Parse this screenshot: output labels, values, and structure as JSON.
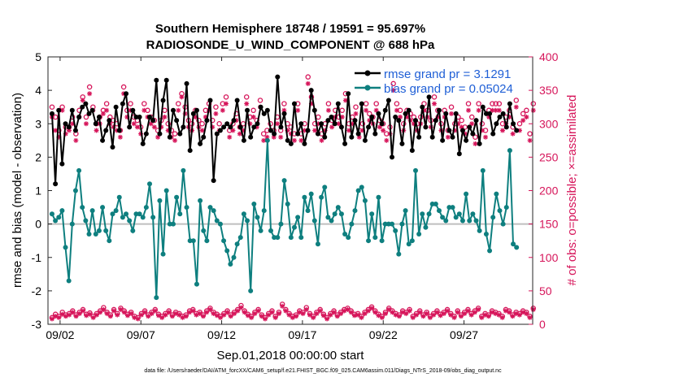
{
  "chart_data": {
    "type": "line",
    "title_line1": "Southern Hemisphere 18748 / 19591 = 95.697%",
    "title_line2": "RADIOSONDE_U_WIND_COMPONENT @ 688 hPa",
    "xlabel": "Sep.01,2018 00:00:00 start",
    "ylabel_left": "rmse and bias (model - observation)",
    "ylabel_right": "# of obs: o=possible; ×=assimilated",
    "footer": "data file: /Users/raeder/DAI/ATM_forcXX/CAM6_setup/f.e21.FHIST_BGC.f09_025.CAM6assim.011/Diags_NTrS_2018-09/obs_diag_output.nc",
    "xlim": [
      0.5,
      60.5
    ],
    "ylim_left": [
      -3,
      5
    ],
    "ylim_right": [
      0,
      400
    ],
    "x_ticks": [
      2,
      12,
      22,
      32,
      42,
      52
    ],
    "x_tick_labels": [
      "09/02",
      "09/07",
      "09/12",
      "09/17",
      "09/22",
      "09/27"
    ],
    "y_ticks_left": [
      -3,
      -2,
      -1,
      0,
      1,
      2,
      3,
      4,
      5
    ],
    "y_ticks_right": [
      0,
      50,
      100,
      150,
      200,
      250,
      300,
      350,
      400
    ],
    "legend": [
      "rmse grand pr = 3.1291",
      "bias grand pr = 0.05024"
    ],
    "colors": {
      "rmse": "#000000",
      "bias": "#0e7f7f",
      "obs": "#d6155a",
      "zero": "#bfbfbf"
    },
    "series": [
      {
        "name": "rmse",
        "values": [
          3.3,
          1.2,
          3.4,
          1.8,
          3.0,
          2.9,
          3.4,
          2.8,
          3.2,
          3.5,
          3.6,
          3.3,
          3.4,
          3.0,
          3.2,
          2.5,
          2.8,
          3.1,
          2.3,
          3.5,
          2.8,
          3.6,
          3.9,
          2.9,
          3.4,
          3.2,
          3.2,
          2.4,
          2.7,
          3.2,
          3.1,
          4.3,
          2.7,
          3.7,
          4.3,
          2.6,
          3.4,
          3.1,
          2.7,
          2.9,
          4.2,
          2.2,
          3.3,
          3.4,
          2.4,
          2.6,
          3.1,
          3.7,
          1.3,
          2.7,
          2.8,
          2.9,
          3.0,
          2.9,
          3.1,
          3.7,
          2.9,
          2.5,
          3.4,
          2.6,
          2.9,
          3.0,
          3.5,
          3.3,
          3.4,
          2.8,
          2.7,
          4.4,
          2.9,
          3.3,
          2.5,
          2.4,
          3.6,
          2.7,
          3.0,
          2.4,
          2.8,
          4.0,
          3.4,
          2.7,
          3.0,
          2.6,
          3.1,
          3.2,
          3.0,
          3.6,
          2.9,
          2.4,
          3.9,
          2.6,
          3.1,
          2.7,
          3.6,
          2.5,
          2.9,
          3.2,
          2.7,
          3.3,
          3.0,
          3.4,
          3.7,
          2.0,
          3.2,
          3.1,
          2.4,
          3.3,
          3.4,
          2.2,
          3.1,
          2.6,
          3.5,
          2.9,
          3.8,
          2.6,
          3.1,
          3.4,
          2.5,
          3.3,
          2.8,
          2.6,
          3.3,
          2.1,
          2.8,
          2.5,
          2.9,
          2.7,
          3.1,
          2.4,
          3.5,
          3.3,
          3.3,
          2.7,
          3.0,
          3.2,
          3.3,
          2.9,
          3.6,
          3.0,
          2.8
        ],
        "x_step": 0.4167
      },
      {
        "name": "bias",
        "values": [
          0.3,
          0.1,
          0.2,
          0.4,
          -0.7,
          -1.7,
          0.0,
          1.0,
          1.6,
          0.5,
          0.1,
          -0.3,
          0.4,
          -0.3,
          -0.2,
          0.5,
          -0.2,
          -0.5,
          0.3,
          0.4,
          0.8,
          0.2,
          0.3,
          0.1,
          -0.2,
          0.3,
          0.3,
          0.2,
          0.5,
          1.2,
          0.2,
          -2.2,
          0.7,
          -0.9,
          1.0,
          0.0,
          0.0,
          0.8,
          0.3,
          1.6,
          0.5,
          -0.5,
          -0.5,
          -1.8,
          0.7,
          -0.2,
          -0.5,
          0.5,
          0.4,
          0.1,
          0.0,
          -0.5,
          -0.8,
          -1.2,
          -1.0,
          -0.6,
          -0.4,
          0.3,
          0.1,
          -2.0,
          0.6,
          0.2,
          -0.2,
          0.4,
          2.5,
          -0.2,
          -0.4,
          -0.4,
          0.0,
          1.3,
          0.6,
          -0.4,
          -0.1,
          0.2,
          -0.4,
          0.8,
          0.4,
          0.9,
          0.1,
          -0.6,
          0.8,
          1.1,
          0.2,
          0.1,
          0.3,
          0.5,
          0.3,
          -0.3,
          -0.4,
          0.0,
          0.4,
          1.0,
          1.1,
          0.7,
          -0.5,
          0.3,
          -0.4,
          0.8,
          -0.5,
          0.0,
          0.0,
          0.0,
          -0.2,
          -0.9,
          0.0,
          0.4,
          -0.6,
          -0.5,
          1.6,
          -0.3,
          0.3,
          -0.1,
          0.3,
          0.6,
          0.6,
          0.4,
          0.2,
          0.1,
          0.5,
          0.5,
          0.2,
          0.3,
          0.1,
          0.9,
          0.1,
          0.3,
          0.1,
          -0.2,
          1.6,
          -0.3,
          -0.8,
          0.2,
          0.9,
          0.4,
          0.0,
          0.5,
          2.2,
          -0.6,
          -0.7
        ],
        "x_step": 0.4167
      },
      {
        "name": "obs_possible",
        "values": [
          325,
          310,
          290,
          325,
          295,
          295,
          310,
          285,
          320,
          340,
          310,
          355,
          325,
          300,
          310,
          320,
          330,
          310,
          305,
          300,
          290,
          355,
          320,
          330,
          310,
          305,
          295,
          330,
          320,
          310,
          305,
          290,
          305,
          320,
          300,
          290,
          285,
          330,
          345,
          325,
          305,
          300,
          320,
          305,
          300,
          320,
          330,
          305,
          325,
          300,
          330,
          340,
          290,
          300,
          315,
          295,
          300,
          340,
          310,
          320,
          305,
          335,
          285,
          290,
          300,
          290,
          310,
          290,
          330,
          300,
          295,
          285,
          330,
          285,
          300,
          370,
          340,
          300,
          310,
          285,
          300,
          330,
          305,
          320,
          310,
          320,
          345,
          300,
          310,
          325,
          290,
          300,
          330,
          315,
          310,
          330,
          305,
          300,
          285,
          295,
          360,
          330,
          320,
          300,
          320,
          315,
          310,
          300,
          310,
          330,
          320,
          305,
          340,
          320,
          300,
          320,
          290,
          325,
          300,
          310,
          305,
          295,
          330,
          310,
          280,
          330,
          300,
          290,
          320,
          330,
          330,
          330,
          300,
          310,
          320,
          295,
          335,
          300,
          315,
          320,
          285,
          330
        ]
      },
      {
        "name": "obs_assimilated",
        "values": [
          310,
          290,
          280,
          320,
          285,
          290,
          300,
          275,
          310,
          335,
          300,
          345,
          320,
          290,
          300,
          315,
          320,
          300,
          295,
          290,
          280,
          345,
          310,
          320,
          300,
          295,
          285,
          320,
          310,
          300,
          295,
          280,
          295,
          310,
          290,
          280,
          275,
          320,
          340,
          315,
          295,
          290,
          310,
          295,
          290,
          310,
          320,
          295,
          315,
          290,
          320,
          330,
          280,
          290,
          305,
          285,
          290,
          330,
          300,
          310,
          295,
          325,
          275,
          280,
          290,
          280,
          300,
          280,
          320,
          290,
          285,
          275,
          320,
          275,
          290,
          360,
          330,
          290,
          300,
          275,
          290,
          320,
          295,
          310,
          300,
          310,
          335,
          290,
          300,
          315,
          280,
          290,
          320,
          305,
          300,
          320,
          295,
          290,
          275,
          285,
          350,
          320,
          310,
          290,
          310,
          305,
          300,
          290,
          300,
          320,
          310,
          295,
          330,
          310,
          290,
          310,
          280,
          315,
          290,
          300,
          295,
          285,
          320,
          300,
          270,
          320,
          290,
          280,
          310,
          320,
          320,
          320,
          290,
          300,
          310,
          285,
          325,
          290,
          305,
          310,
          275,
          320
        ]
      },
      {
        "name": "obs_low_possible",
        "values": [
          10,
          15,
          12,
          18,
          14,
          16,
          20,
          14,
          18,
          22,
          15,
          17,
          12,
          16,
          20,
          25,
          18,
          14,
          22,
          16,
          24,
          20,
          15,
          18,
          12,
          10,
          16,
          20,
          14,
          18,
          22,
          15,
          12,
          16,
          20,
          14,
          18,
          16,
          12,
          14,
          20,
          22,
          16,
          18,
          14,
          20,
          24,
          18,
          15,
          12,
          16,
          20,
          14,
          18,
          22,
          28,
          20,
          15,
          12,
          18,
          22,
          14,
          10,
          16,
          20,
          12,
          18,
          30,
          22,
          16,
          12,
          14,
          20,
          18,
          25,
          16,
          12,
          18,
          22,
          15,
          10,
          16,
          20,
          14,
          18,
          22,
          24,
          20,
          15,
          16,
          12,
          18,
          22,
          26,
          20,
          15,
          12,
          18,
          24,
          20,
          16,
          14,
          20,
          18,
          22,
          12,
          16,
          20,
          14,
          18,
          12,
          16,
          20,
          15,
          18,
          22,
          16,
          12,
          20,
          14,
          18,
          22,
          16,
          20,
          24,
          12,
          16,
          14,
          20,
          18,
          16,
          12,
          22,
          20,
          14,
          18,
          16,
          20,
          18,
          12,
          24
        ]
      },
      {
        "name": "obs_low_assimilated",
        "values": [
          8,
          12,
          10,
          15,
          12,
          14,
          18,
          12,
          16,
          20,
          13,
          15,
          10,
          14,
          18,
          22,
          16,
          12,
          20,
          14,
          22,
          18,
          13,
          16,
          10,
          8,
          14,
          18,
          12,
          16,
          20,
          13,
          10,
          14,
          18,
          12,
          16,
          14,
          10,
          12,
          18,
          20,
          14,
          16,
          12,
          18,
          22,
          16,
          13,
          10,
          14,
          18,
          12,
          16,
          20,
          25,
          18,
          13,
          10,
          16,
          20,
          12,
          8,
          14,
          18,
          10,
          16,
          27,
          20,
          14,
          10,
          12,
          18,
          16,
          22,
          14,
          10,
          16,
          20,
          13,
          8,
          14,
          18,
          12,
          16,
          20,
          22,
          18,
          13,
          14,
          10,
          16,
          20,
          24,
          18,
          13,
          10,
          16,
          22,
          18,
          14,
          12,
          18,
          16,
          20,
          10,
          14,
          18,
          12,
          16,
          10,
          14,
          18,
          13,
          16,
          20,
          14,
          10,
          18,
          12,
          16,
          20,
          14,
          18,
          22,
          10,
          14,
          12,
          18,
          16,
          14,
          10,
          20,
          18,
          12,
          16,
          14,
          18,
          16,
          10,
          22
        ]
      }
    ]
  }
}
